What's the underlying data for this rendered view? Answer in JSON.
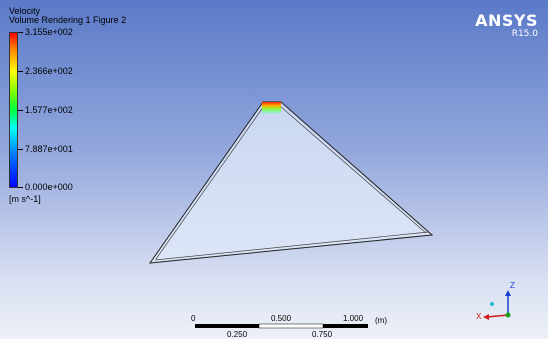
{
  "legend": {
    "title_line1": "Velocity",
    "title_line2": "Volume Rendering 1 Figure 2",
    "ticks": [
      "3.155e+002",
      "2.366e+002",
      "1.577e+002",
      "7.887e+001",
      "0.000e+000"
    ],
    "unit": "[m s^-1]"
  },
  "brand": {
    "name": "ANSYS",
    "version": "R15.0"
  },
  "scale": {
    "top_labels": [
      "0",
      "0.500",
      "1.000",
      "(m)"
    ],
    "bottom_labels": [
      "0.250",
      "0.750"
    ]
  },
  "triad": {
    "z_label": "Z",
    "x_label": "X"
  },
  "colors": {
    "background_top": "#5a79c8",
    "background_bottom": "#eef1f8",
    "geometry_edge": "#222222"
  }
}
